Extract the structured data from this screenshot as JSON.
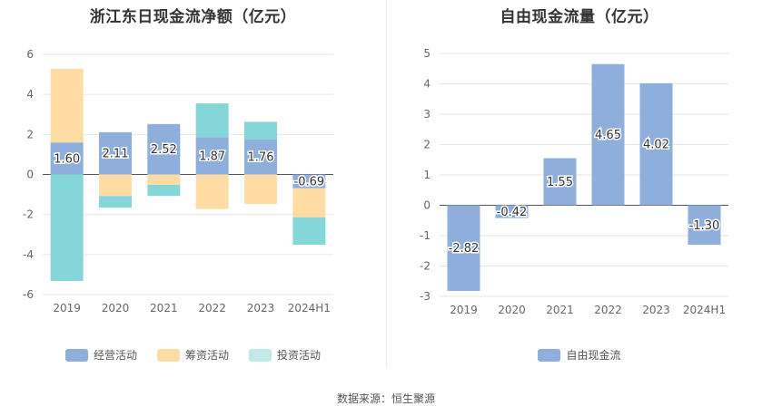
{
  "chart_data": [
    {
      "type": "bar",
      "stacked": true,
      "title": "浙江东日现金流净额（亿元）",
      "categories": [
        "2019",
        "2020",
        "2021",
        "2022",
        "2023",
        "2024H1"
      ],
      "series": [
        {
          "name": "经营活动",
          "color": "#8eaedb",
          "values": [
            1.6,
            2.11,
            2.52,
            1.87,
            1.76,
            -0.69
          ]
        },
        {
          "name": "筹资活动",
          "color": "#fedca3",
          "values": [
            3.68,
            -1.08,
            -0.52,
            -1.73,
            -1.47,
            -1.45
          ]
        },
        {
          "name": "投资活动",
          "color": "#85d6d8",
          "values": [
            -5.32,
            -0.57,
            -0.55,
            1.68,
            0.87,
            -1.37
          ]
        }
      ],
      "labels": [
        "1.60",
        "2.11",
        "2.52",
        "1.87",
        "1.76",
        "-0.69"
      ],
      "yticks": [
        "6",
        "4",
        "2",
        "0",
        "-2",
        "-4",
        "-6"
      ],
      "ylim": [
        -6,
        6
      ],
      "legend": [
        {
          "name": "经营活动",
          "color": "#8eaedb"
        },
        {
          "name": "筹资活动",
          "color": "#fedca3"
        },
        {
          "name": "投资活动",
          "color": "#c2e9ea"
        }
      ]
    },
    {
      "type": "bar",
      "title": "自由现金流量（亿元）",
      "categories": [
        "2019",
        "2020",
        "2021",
        "2022",
        "2023",
        "2024H1"
      ],
      "series": [
        {
          "name": "自由现金流",
          "color": "#8eaedb",
          "values": [
            -2.82,
            -0.42,
            1.55,
            4.65,
            4.02,
            -1.3
          ]
        }
      ],
      "labels": [
        "-2.82",
        "-0.42",
        "1.55",
        "4.65",
        "4.02",
        "-1.30"
      ],
      "yticks": [
        "5",
        "4",
        "3",
        "2",
        "1",
        "0",
        "-1",
        "-2",
        "-3"
      ],
      "ylim": [
        -3,
        5
      ],
      "legend": [
        {
          "name": "自由现金流",
          "color": "#8eaedb"
        }
      ]
    }
  ],
  "footer": {
    "source": "数据来源：恒生聚源"
  }
}
